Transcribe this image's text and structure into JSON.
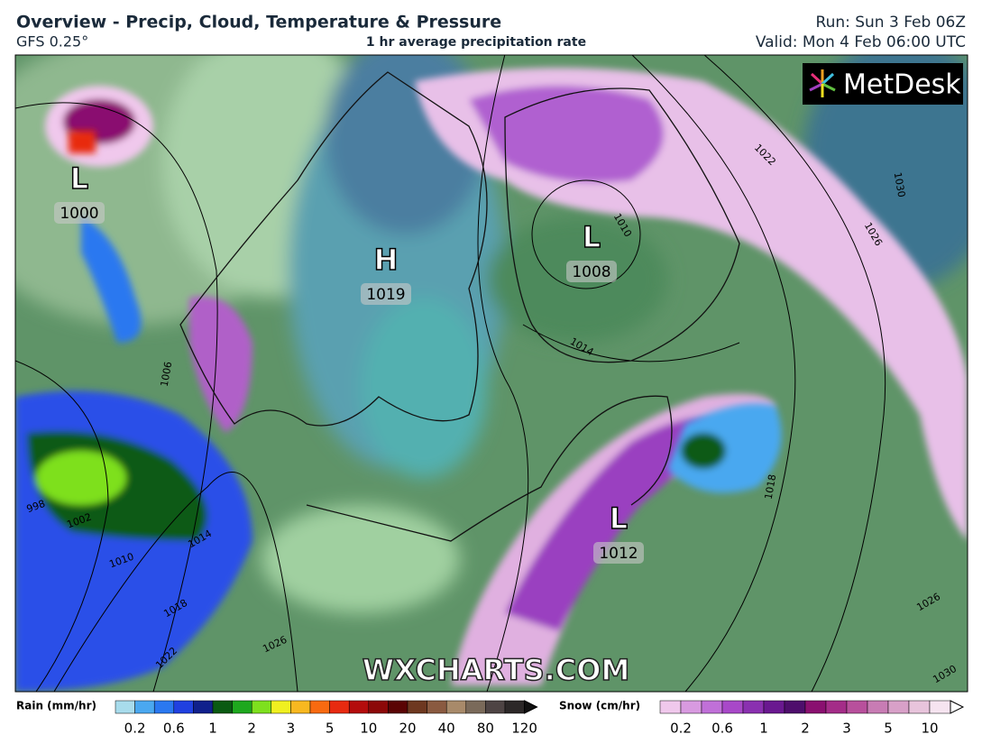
{
  "header": {
    "title": "Overview - Precip, Cloud, Temperature & Pressure",
    "model": "GFS 0.25°",
    "subtitle": "1 hr average precipitation rate",
    "run": "Run: Sun 3 Feb 06Z",
    "valid": "Valid: Mon 4 Feb 06:00 UTC"
  },
  "logo": "MetDesk",
  "watermark": "WXCHARTS.COM",
  "pressure_centers": [
    {
      "type": "L",
      "value": "1000"
    },
    {
      "type": "H",
      "value": "1019"
    },
    {
      "type": "L",
      "value": "1008"
    },
    {
      "type": "L",
      "value": "1012"
    }
  ],
  "isobar_labels": [
    "1006",
    "1002",
    "998",
    "1010",
    "1014",
    "1018",
    "1022",
    "1026",
    "1010",
    "1014",
    "1018",
    "1022",
    "1026",
    "1030",
    "1026",
    "1030"
  ],
  "legends": {
    "rain": {
      "title": "Rain (mm/hr)",
      "ticks": [
        "0.2",
        "0.6",
        "1",
        "2",
        "3",
        "5",
        "10",
        "20",
        "40",
        "80",
        "120"
      ],
      "colors": [
        "#a8dcec",
        "#4aa8f0",
        "#2a78f0",
        "#2040e0",
        "#10208c",
        "#0a5a12",
        "#1ea81e",
        "#7ee01e",
        "#f0f020",
        "#f8b820",
        "#f86a10",
        "#e82a10",
        "#b40c0c",
        "#8c0808",
        "#5a0404",
        "#6e3820",
        "#8a5a40",
        "#a88a6a",
        "#7a6a5a",
        "#4e4444",
        "#2c2828"
      ]
    },
    "snow": {
      "title": "Snow (cm/hr)",
      "ticks": [
        "0.2",
        "0.6",
        "1",
        "2",
        "3",
        "5",
        "10"
      ],
      "colors": [
        "#f0c8ec",
        "#d89ae0",
        "#c070d8",
        "#a848c8",
        "#8a30b0",
        "#6a1890",
        "#4e0e6c",
        "#8a1070",
        "#a42c88",
        "#b8509c",
        "#c87cb4",
        "#d8a0c8",
        "#e8c4dc",
        "#f6e4f0"
      ]
    }
  }
}
